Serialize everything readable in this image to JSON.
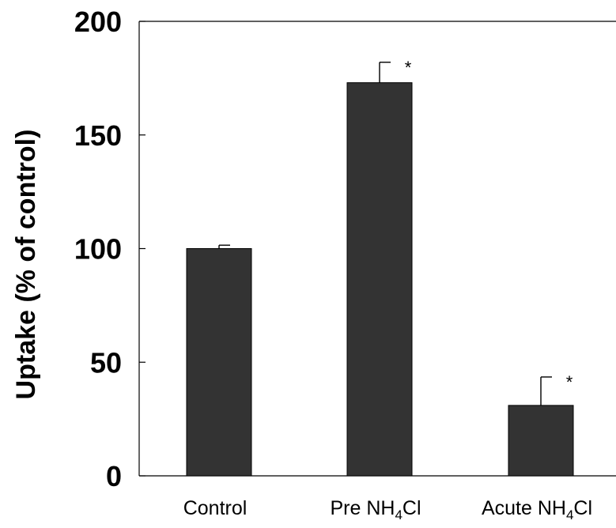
{
  "chart_data": {
    "type": "bar",
    "title": "",
    "xlabel": "",
    "ylabel": "Uptake (% of control)",
    "ylim": [
      0,
      200
    ],
    "yticks": [
      0,
      50,
      100,
      150,
      200
    ],
    "categories": [
      {
        "prefix": "Control",
        "sub": "",
        "suffix": ""
      },
      {
        "prefix": "Pre NH",
        "sub": "4",
        "suffix": "Cl"
      },
      {
        "prefix": "Acute NH",
        "sub": "4",
        "suffix": "Cl"
      }
    ],
    "values": [
      100,
      173,
      31
    ],
    "errors": [
      1.5,
      9,
      12.5
    ],
    "significance": [
      "",
      "*",
      "*"
    ],
    "bar_color": "#333333",
    "grid": false,
    "legend": "none"
  }
}
